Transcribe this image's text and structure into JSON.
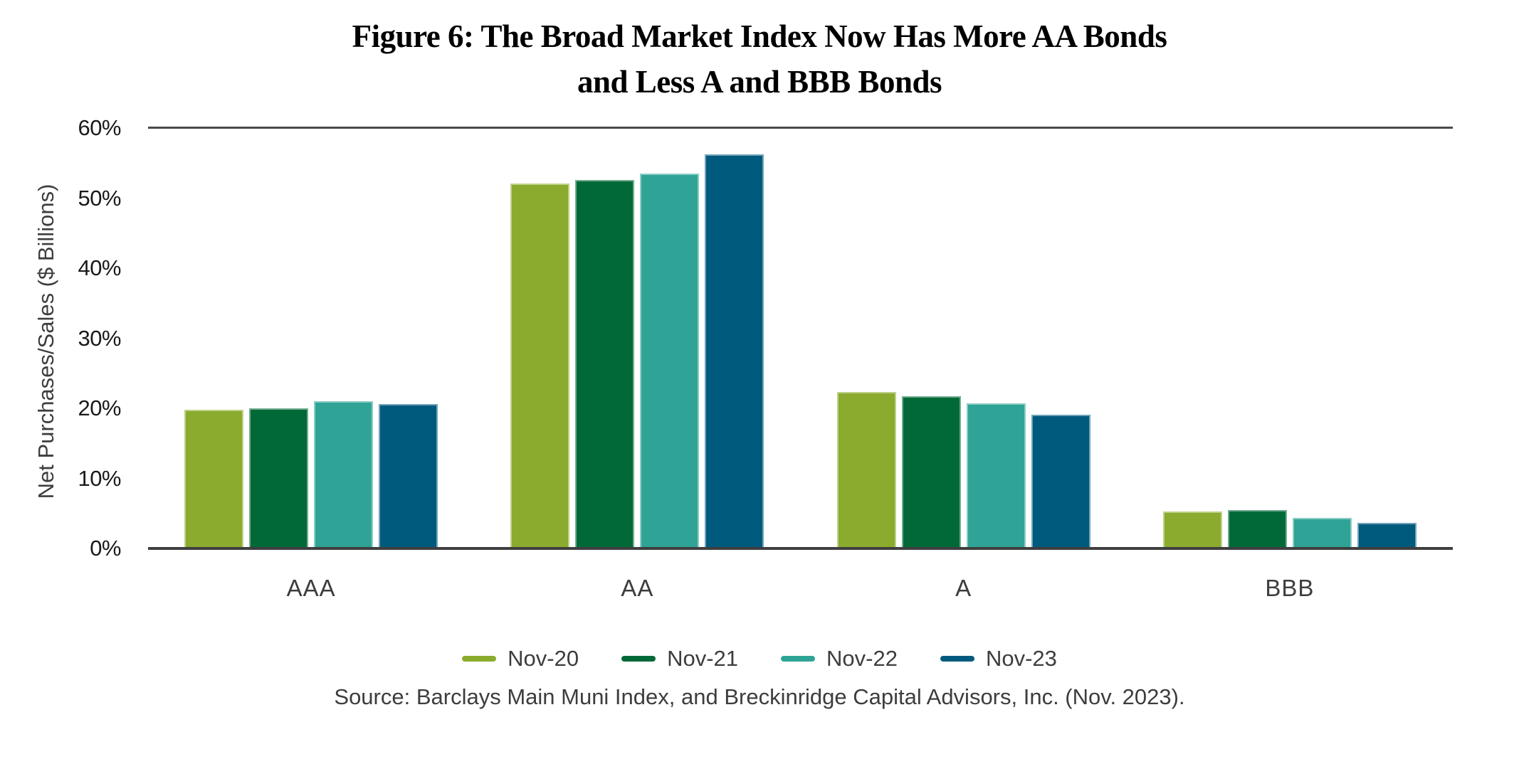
{
  "chart_data": {
    "type": "bar",
    "title_line1": "Figure 6: The Broad Market Index Now Has More AA Bonds",
    "title_line2": "and Less A and BBB Bonds",
    "ylabel": "Net Purchases/Sales ($ Billions)",
    "categories": [
      "AAA",
      "AA",
      "A",
      "BBB"
    ],
    "series": [
      {
        "name": "Nov-20",
        "color": "#8AAB2D",
        "values": [
          19.8,
          52.1,
          22.3,
          5.3
        ]
      },
      {
        "name": "Nov-21",
        "color": "#006937",
        "values": [
          20.0,
          52.6,
          21.7,
          5.5
        ]
      },
      {
        "name": "Nov-22",
        "color": "#2FA496",
        "values": [
          21.0,
          53.5,
          20.7,
          4.4
        ]
      },
      {
        "name": "Nov-23",
        "color": "#005A7E",
        "values": [
          20.6,
          56.2,
          19.1,
          3.7
        ]
      }
    ],
    "ylim": [
      0,
      60
    ],
    "yticks": [
      "60%",
      "50%",
      "40%",
      "30%",
      "20%",
      "10%",
      "0%"
    ],
    "grid": "top-line-and-baseline-only",
    "legend_position": "bottom",
    "axis_line_color": "#3f3f3f"
  },
  "source": {
    "text": "Source: Barclays Main Muni Index, and Breckinridge Capital Advisors, Inc. (Nov. 2023)."
  }
}
